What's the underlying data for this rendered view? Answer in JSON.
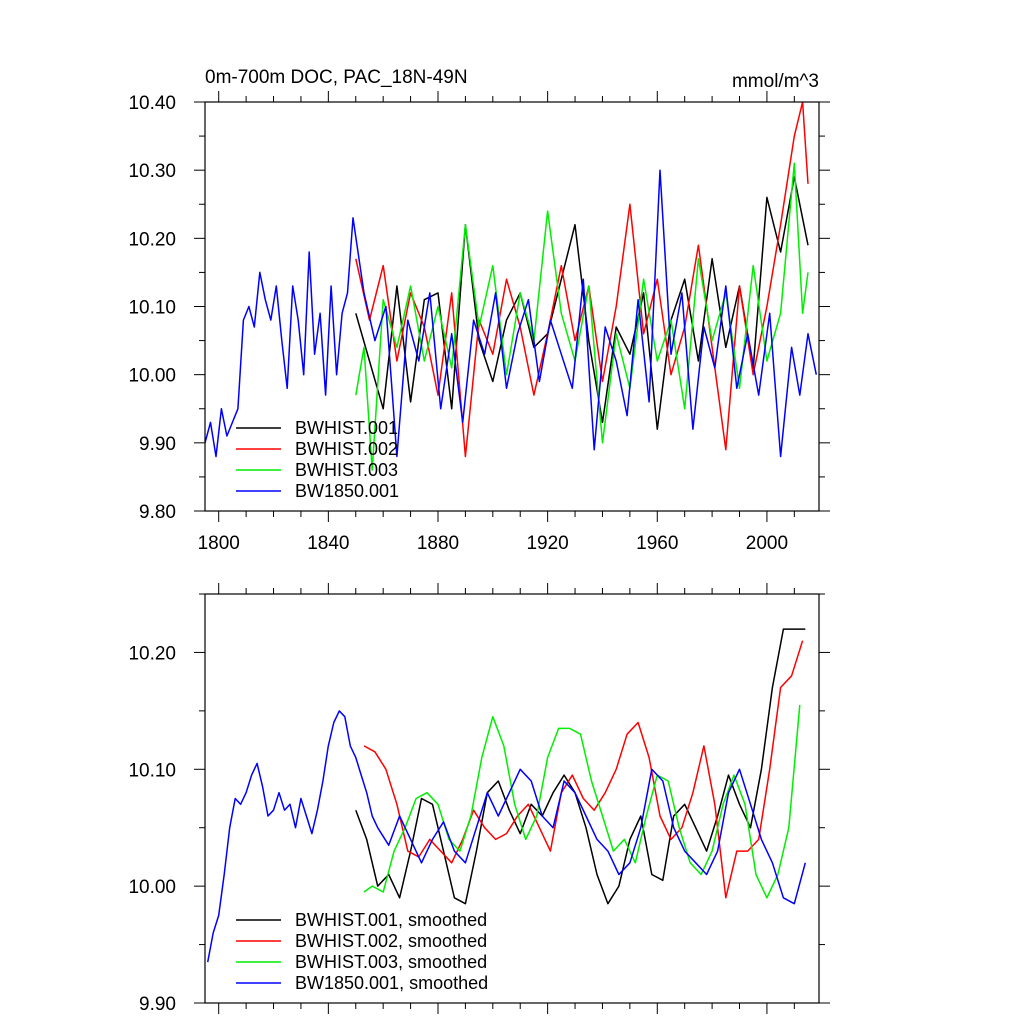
{
  "colors": {
    "BWHIST.001": "#000000",
    "BWHIST.002": "#ff0000",
    "BWHIST.003": "#00ee00",
    "BW1850.001": "#0000ff"
  },
  "chart_data": [
    {
      "type": "line",
      "title_left": "0m-700m DOC, PAC_18N-49N",
      "title_right": "mmol/m^3",
      "xlabel": "",
      "ylabel": "",
      "xlim": [
        1795,
        2019
      ],
      "ylim": [
        9.8,
        10.4
      ],
      "xticks": [
        1800,
        1840,
        1880,
        1920,
        1960,
        2000
      ],
      "xtick_labels": [
        "1800",
        "1840",
        "1880",
        "1920",
        "1960",
        "2000"
      ],
      "yticks": [
        9.8,
        9.9,
        10.0,
        10.1,
        10.2,
        10.3,
        10.4
      ],
      "ytick_labels": [
        "9.80",
        "9.90",
        "10.00",
        "10.10",
        "10.20",
        "10.30",
        "10.40"
      ],
      "legend_location": "bottom-left",
      "series": [
        {
          "name": "BWHIST.001",
          "legend": "BWHIST.001",
          "color_key": "BWHIST.001",
          "x": [
            1850,
            1855,
            1860,
            1865,
            1870,
            1875,
            1880,
            1885,
            1890,
            1895,
            1900,
            1905,
            1910,
            1915,
            1920,
            1925,
            1930,
            1935,
            1940,
            1945,
            1950,
            1955,
            1960,
            1965,
            1970,
            1975,
            1980,
            1985,
            1990,
            1995,
            2000,
            2005,
            2010,
            2015
          ],
          "y": [
            10.09,
            10.02,
            9.95,
            10.13,
            9.96,
            10.11,
            10.12,
            9.95,
            10.22,
            10.05,
            9.99,
            10.08,
            10.12,
            10.04,
            10.06,
            10.14,
            10.22,
            10.05,
            9.93,
            10.07,
            10.03,
            10.12,
            9.92,
            10.08,
            10.14,
            10.02,
            10.17,
            10.04,
            10.13,
            10.01,
            10.26,
            10.18,
            10.29,
            10.19
          ]
        },
        {
          "name": "BWHIST.002",
          "legend": "BWHIST.002",
          "color_key": "BWHIST.002",
          "x": [
            1850,
            1855,
            1860,
            1865,
            1870,
            1875,
            1880,
            1885,
            1890,
            1895,
            1900,
            1905,
            1910,
            1915,
            1920,
            1925,
            1930,
            1935,
            1940,
            1945,
            1950,
            1955,
            1960,
            1965,
            1970,
            1975,
            1980,
            1985,
            1990,
            1995,
            2000,
            2005,
            2010,
            2013,
            2015
          ],
          "y": [
            10.17,
            10.08,
            10.16,
            10.02,
            10.12,
            10.07,
            9.97,
            10.12,
            9.88,
            10.08,
            10.03,
            10.14,
            10.07,
            9.97,
            10.06,
            10.16,
            10.05,
            10.13,
            9.99,
            10.1,
            10.25,
            10.06,
            10.14,
            10.0,
            10.07,
            10.19,
            10.04,
            9.89,
            10.13,
            10.0,
            10.1,
            10.22,
            10.35,
            10.4,
            10.28
          ]
        },
        {
          "name": "BWHIST.003",
          "legend": "BWHIST.003",
          "color_key": "BWHIST.003",
          "x": [
            1850,
            1853,
            1856,
            1860,
            1865,
            1870,
            1875,
            1880,
            1885,
            1890,
            1895,
            1900,
            1905,
            1910,
            1915,
            1920,
            1925,
            1930,
            1935,
            1940,
            1945,
            1950,
            1955,
            1960,
            1965,
            1970,
            1975,
            1980,
            1985,
            1990,
            1995,
            2000,
            2005,
            2010,
            2013,
            2015
          ],
          "y": [
            9.97,
            10.04,
            9.86,
            10.11,
            10.04,
            10.13,
            10.02,
            10.1,
            10.01,
            10.22,
            10.07,
            10.16,
            10.0,
            10.12,
            10.05,
            10.24,
            10.09,
            10.02,
            10.13,
            9.9,
            10.06,
            9.98,
            10.14,
            10.02,
            10.08,
            9.95,
            10.17,
            10.05,
            10.12,
            9.98,
            10.16,
            10.02,
            10.09,
            10.31,
            10.09,
            10.15
          ]
        },
        {
          "name": "BW1850.001",
          "legend": "BW1850.001",
          "color_key": "BW1850.001",
          "x": [
            1795,
            1797,
            1799,
            1801,
            1803,
            1805,
            1807,
            1809,
            1811,
            1813,
            1815,
            1817,
            1819,
            1821,
            1823,
            1825,
            1827,
            1829,
            1831,
            1833,
            1835,
            1837,
            1839,
            1841,
            1843,
            1845,
            1847,
            1849,
            1853,
            1857,
            1861,
            1865,
            1869,
            1873,
            1877,
            1881,
            1885,
            1889,
            1893,
            1897,
            1901,
            1905,
            1909,
            1913,
            1917,
            1921,
            1925,
            1929,
            1933,
            1937,
            1941,
            1945,
            1949,
            1953,
            1957,
            1961,
            1965,
            1969,
            1973,
            1977,
            1981,
            1985,
            1989,
            1993,
            1997,
            2001,
            2005,
            2009,
            2012,
            2015,
            2018
          ],
          "y": [
            9.9,
            9.93,
            9.88,
            9.95,
            9.91,
            9.93,
            9.95,
            10.08,
            10.1,
            10.07,
            10.15,
            10.11,
            10.08,
            10.13,
            10.05,
            9.98,
            10.13,
            10.08,
            10.0,
            10.18,
            10.03,
            10.09,
            9.97,
            10.13,
            10.0,
            10.09,
            10.12,
            10.23,
            10.12,
            10.05,
            10.1,
            9.88,
            10.08,
            10.02,
            10.12,
            9.95,
            10.06,
            9.93,
            10.08,
            10.03,
            10.12,
            9.98,
            10.06,
            10.11,
            9.99,
            10.08,
            10.03,
            9.98,
            10.14,
            9.89,
            10.07,
            10.02,
            9.94,
            10.11,
            9.96,
            10.3,
            10.03,
            10.12,
            9.92,
            10.07,
            10.01,
            10.13,
            9.98,
            10.06,
            9.97,
            10.09,
            9.88,
            10.04,
            9.97,
            10.06,
            10.0
          ]
        }
      ]
    },
    {
      "type": "line",
      "title_left": "",
      "title_right": "",
      "xlabel": "",
      "ylabel": "",
      "xlim": [
        1795,
        2019
      ],
      "ylim": [
        9.9,
        10.25
      ],
      "xticks": [
        1800,
        1840,
        1880,
        1920,
        1960,
        2000
      ],
      "yticks": [
        9.9,
        10.0,
        10.1,
        10.2
      ],
      "ytick_labels": [
        "9.90",
        "10.00",
        "10.10",
        "10.20"
      ],
      "legend_location": "bottom-left",
      "series": [
        {
          "name": "BWHIST.001",
          "legend": "BWHIST.001, smoothed",
          "color_key": "BWHIST.001",
          "x": [
            1850,
            1854,
            1858,
            1862,
            1866,
            1870,
            1874,
            1878,
            1882,
            1886,
            1890,
            1894,
            1898,
            1902,
            1906,
            1910,
            1914,
            1918,
            1922,
            1926,
            1930,
            1934,
            1938,
            1942,
            1946,
            1950,
            1954,
            1958,
            1962,
            1966,
            1970,
            1974,
            1978,
            1982,
            1986,
            1990,
            1994,
            1998,
            2002,
            2006,
            2010,
            2014
          ],
          "y": [
            10.065,
            10.04,
            10.0,
            10.01,
            9.99,
            10.03,
            10.075,
            10.07,
            10.03,
            9.99,
            9.985,
            10.03,
            10.08,
            10.09,
            10.065,
            10.045,
            10.07,
            10.06,
            10.08,
            10.095,
            10.08,
            10.05,
            10.01,
            9.985,
            10.0,
            10.04,
            10.06,
            10.01,
            10.005,
            10.06,
            10.07,
            10.05,
            10.03,
            10.06,
            10.095,
            10.07,
            10.05,
            10.1,
            10.17,
            10.22,
            10.22,
            10.22
          ]
        },
        {
          "name": "BWHIST.002",
          "legend": "BWHIST.002, smoothed",
          "color_key": "BWHIST.002",
          "x": [
            1853,
            1857,
            1861,
            1865,
            1869,
            1873,
            1877,
            1881,
            1885,
            1889,
            1893,
            1897,
            1901,
            1905,
            1909,
            1913,
            1917,
            1921,
            1925,
            1929,
            1933,
            1937,
            1941,
            1945,
            1949,
            1953,
            1957,
            1961,
            1965,
            1969,
            1973,
            1977,
            1981,
            1985,
            1989,
            1993,
            1997,
            2001,
            2005,
            2009,
            2013
          ],
          "y": [
            10.12,
            10.115,
            10.1,
            10.07,
            10.03,
            10.025,
            10.04,
            10.03,
            10.02,
            10.04,
            10.065,
            10.05,
            10.04,
            10.045,
            10.06,
            10.07,
            10.05,
            10.03,
            10.08,
            10.095,
            10.075,
            10.065,
            10.08,
            10.1,
            10.13,
            10.14,
            10.11,
            10.06,
            10.04,
            10.05,
            10.08,
            10.12,
            10.07,
            9.99,
            10.03,
            10.03,
            10.04,
            10.1,
            10.17,
            10.18,
            10.21
          ]
        },
        {
          "name": "BWHIST.003",
          "legend": "BWHIST.003, smoothed",
          "color_key": "BWHIST.003",
          "x": [
            1853,
            1856,
            1860,
            1864,
            1868,
            1872,
            1876,
            1880,
            1884,
            1888,
            1892,
            1896,
            1900,
            1904,
            1908,
            1912,
            1916,
            1920,
            1924,
            1928,
            1932,
            1936,
            1940,
            1944,
            1948,
            1952,
            1956,
            1960,
            1964,
            1968,
            1972,
            1976,
            1980,
            1984,
            1988,
            1992,
            1996,
            2000,
            2004,
            2008,
            2012
          ],
          "y": [
            9.995,
            10.0,
            9.995,
            10.03,
            10.05,
            10.075,
            10.08,
            10.07,
            10.04,
            10.03,
            10.06,
            10.11,
            10.145,
            10.12,
            10.07,
            10.04,
            10.06,
            10.11,
            10.135,
            10.135,
            10.13,
            10.09,
            10.06,
            10.03,
            10.04,
            10.02,
            10.06,
            10.095,
            10.09,
            10.05,
            10.02,
            10.01,
            10.03,
            10.07,
            10.095,
            10.07,
            10.01,
            9.99,
            10.01,
            10.05,
            10.155
          ]
        },
        {
          "name": "BW1850.001",
          "legend": "BW1850.001, smoothed",
          "color_key": "BW1850.001",
          "x": [
            1796,
            1798,
            1800,
            1802,
            1804,
            1806,
            1808,
            1810,
            1812,
            1814,
            1816,
            1818,
            1820,
            1822,
            1824,
            1826,
            1828,
            1830,
            1832,
            1834,
            1836,
            1838,
            1840,
            1842,
            1844,
            1846,
            1848,
            1850,
            1852,
            1854,
            1856,
            1858,
            1862,
            1866,
            1870,
            1874,
            1878,
            1882,
            1886,
            1890,
            1894,
            1898,
            1902,
            1906,
            1910,
            1914,
            1918,
            1922,
            1926,
            1930,
            1934,
            1938,
            1942,
            1946,
            1950,
            1954,
            1958,
            1962,
            1966,
            1970,
            1974,
            1978,
            1982,
            1986,
            1990,
            1994,
            1998,
            2002,
            2006,
            2010,
            2014
          ],
          "y": [
            9.935,
            9.96,
            9.975,
            10.01,
            10.05,
            10.075,
            10.07,
            10.08,
            10.095,
            10.105,
            10.085,
            10.06,
            10.065,
            10.08,
            10.065,
            10.07,
            10.05,
            10.075,
            10.06,
            10.045,
            10.065,
            10.09,
            10.12,
            10.14,
            10.15,
            10.145,
            10.12,
            10.11,
            10.095,
            10.08,
            10.06,
            10.05,
            10.035,
            10.06,
            10.04,
            10.02,
            10.04,
            10.055,
            10.03,
            10.02,
            10.05,
            10.08,
            10.06,
            10.08,
            10.1,
            10.09,
            10.06,
            10.05,
            10.09,
            10.08,
            10.06,
            10.04,
            10.03,
            10.01,
            10.02,
            10.05,
            10.1,
            10.09,
            10.05,
            10.03,
            10.02,
            10.01,
            10.03,
            10.08,
            10.1,
            10.07,
            10.04,
            10.02,
            9.99,
            9.985,
            10.02
          ]
        }
      ]
    }
  ]
}
